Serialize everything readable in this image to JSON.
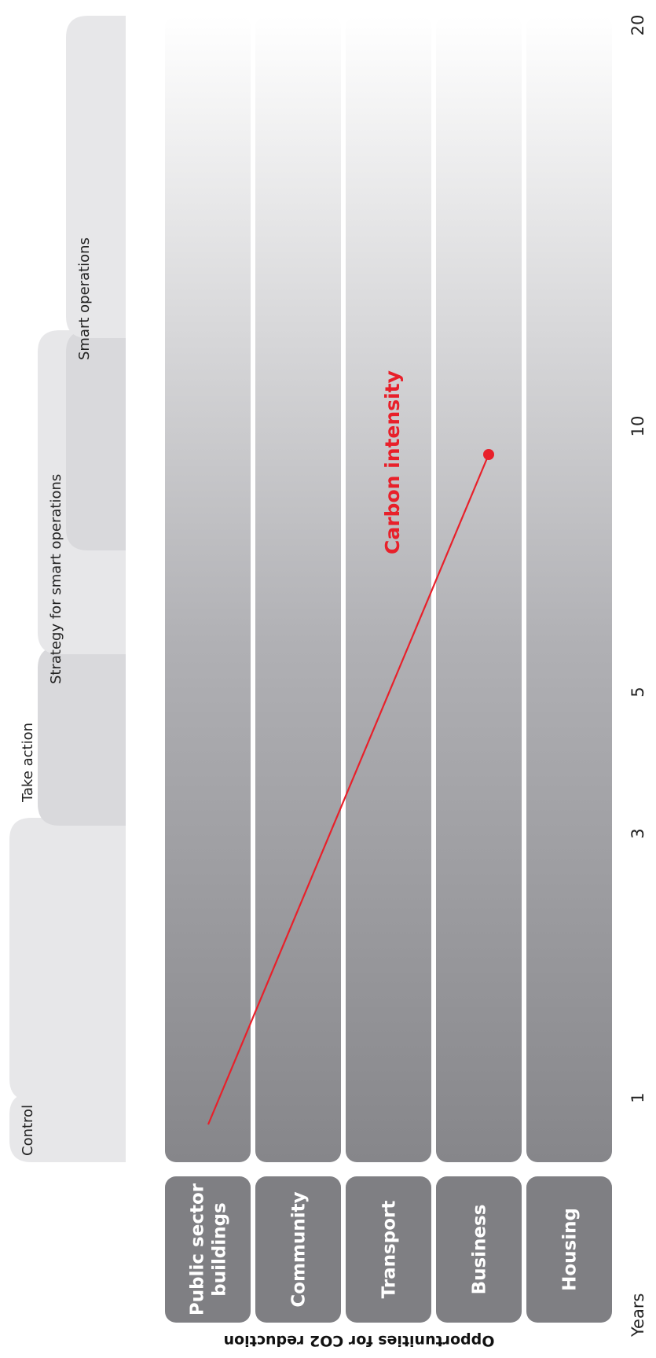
{
  "colors": {
    "accent": "#e8202a",
    "phase_bg": "#e7e7e9",
    "phase_bg_dark": "#d9d9dc",
    "category_bg": "#7f7f83",
    "stripe_dark": "#87878b",
    "stripe_light": "#ffffff"
  },
  "axis_title": "Opportunities for CO2 reduction",
  "years_label": "Years",
  "year_ticks": [
    "1",
    "3",
    "5",
    "10",
    "20"
  ],
  "phases": [
    "Control",
    "Take action",
    "Strategy for smart operations",
    "Smart operations"
  ],
  "categories": [
    {
      "lines": [
        "Public sector",
        "buildings"
      ]
    },
    {
      "lines": [
        "Community"
      ]
    },
    {
      "lines": [
        "Transport"
      ]
    },
    {
      "lines": [
        "Business"
      ]
    },
    {
      "lines": [
        "Housing"
      ]
    }
  ],
  "carbon_label": "Carbon intensity"
}
